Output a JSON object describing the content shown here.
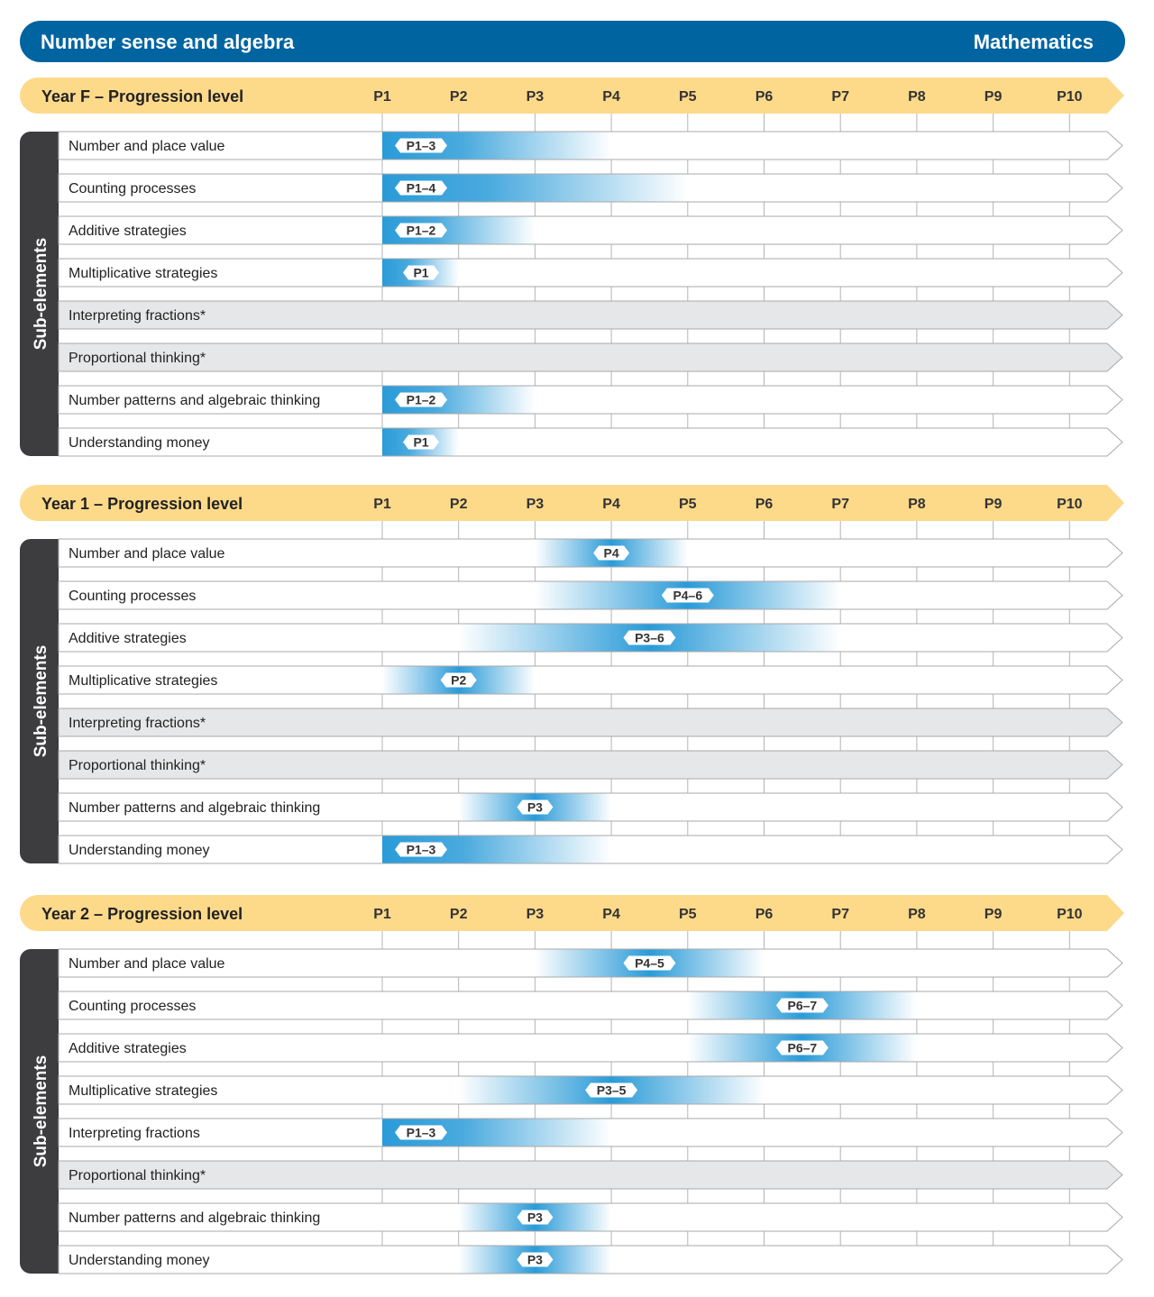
{
  "header": {
    "title": "Number sense and algebra",
    "subject": "Mathematics"
  },
  "colors": {
    "title_bar": "#0064a0",
    "level_bar": "#fdd98a",
    "side_bar": "#3d3d3f",
    "band": "#2a9bd8",
    "unassessed_row": "#e6e7e8"
  },
  "levels": [
    "P1",
    "P2",
    "P3",
    "P4",
    "P5",
    "P6",
    "P7",
    "P8",
    "P9",
    "P10"
  ],
  "side_label": "Sub-elements",
  "sections": [
    {
      "title": "Year F – Progression level",
      "rows": [
        {
          "label": "Number and place value",
          "range": [
            1,
            3
          ],
          "badge": "P1–3"
        },
        {
          "label": "Counting processes",
          "range": [
            1,
            4
          ],
          "badge": "P1–4"
        },
        {
          "label": "Additive strategies",
          "range": [
            1,
            2
          ],
          "badge": "P1–2"
        },
        {
          "label": "Multiplicative strategies",
          "range": [
            1,
            1
          ],
          "badge": "P1"
        },
        {
          "label": "Interpreting fractions*",
          "range": null,
          "badge": null
        },
        {
          "label": "Proportional thinking*",
          "range": null,
          "badge": null
        },
        {
          "label": "Number patterns and algebraic thinking",
          "range": [
            1,
            2
          ],
          "badge": "P1–2"
        },
        {
          "label": "Understanding money",
          "range": [
            1,
            1
          ],
          "badge": "P1"
        }
      ]
    },
    {
      "title": "Year 1 – Progression level",
      "rows": [
        {
          "label": "Number and place value",
          "range": [
            4,
            4
          ],
          "badge": "P4"
        },
        {
          "label": "Counting processes",
          "range": [
            4,
            6
          ],
          "badge": "P4–6"
        },
        {
          "label": "Additive strategies",
          "range": [
            3,
            6
          ],
          "badge": "P3–6"
        },
        {
          "label": "Multiplicative strategies",
          "range": [
            2,
            2
          ],
          "badge": "P2"
        },
        {
          "label": "Interpreting fractions*",
          "range": null,
          "badge": null
        },
        {
          "label": "Proportional thinking*",
          "range": null,
          "badge": null
        },
        {
          "label": "Number patterns and algebraic thinking",
          "range": [
            3,
            3
          ],
          "badge": "P3"
        },
        {
          "label": "Understanding money",
          "range": [
            1,
            3
          ],
          "badge": "P1–3"
        }
      ]
    },
    {
      "title": "Year 2 – Progression level",
      "rows": [
        {
          "label": "Number and place value",
          "range": [
            4,
            5
          ],
          "badge": "P4–5"
        },
        {
          "label": "Counting processes",
          "range": [
            6,
            7
          ],
          "badge": "P6–7"
        },
        {
          "label": "Additive strategies",
          "range": [
            6,
            7
          ],
          "badge": "P6–7"
        },
        {
          "label": "Multiplicative strategies",
          "range": [
            3,
            5
          ],
          "badge": "P3–5"
        },
        {
          "label": "Interpreting fractions",
          "range": [
            1,
            3
          ],
          "badge": "P1–3"
        },
        {
          "label": "Proportional thinking*",
          "range": null,
          "badge": null
        },
        {
          "label": "Number patterns and algebraic thinking",
          "range": [
            3,
            3
          ],
          "badge": "P3"
        },
        {
          "label": "Understanding money",
          "range": [
            3,
            3
          ],
          "badge": "P3"
        }
      ]
    }
  ]
}
